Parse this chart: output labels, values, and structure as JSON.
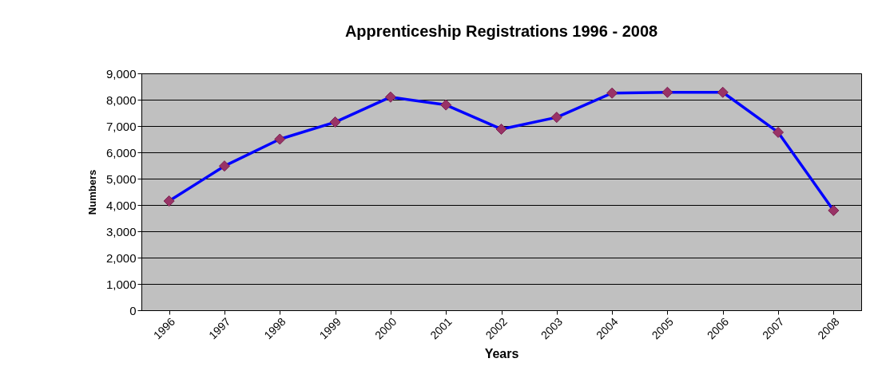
{
  "chart_data": {
    "type": "line",
    "title": "Apprenticeship Registrations 1996 - 2008",
    "xlabel": "Years",
    "ylabel": "Numbers",
    "categories": [
      "1996",
      "1997",
      "1998",
      "1999",
      "2000",
      "2001",
      "2002",
      "2003",
      "2004",
      "2005",
      "2006",
      "2007",
      "2008"
    ],
    "series": [
      {
        "color": "#0000ff",
        "values": [
          4150,
          5480,
          6500,
          7150,
          8100,
          7800,
          6880,
          7330,
          8250,
          8280,
          8280,
          6760,
          3790
        ]
      }
    ],
    "ylim": [
      0,
      9000
    ],
    "yticks": [
      0,
      {
        "value": 1000,
        "label": "1,000"
      },
      {
        "value": 2000,
        "label": "2,000"
      },
      {
        "value": 3000,
        "label": "3,000"
      },
      {
        "value": 4000,
        "label": "4,000"
      },
      {
        "value": 5000,
        "label": "5,000"
      },
      {
        "value": 6000,
        "label": "6,000"
      },
      {
        "value": 7000,
        "label": "7,000"
      },
      {
        "value": 8000,
        "label": "8,000"
      },
      {
        "value": 9000,
        "label": "9,000"
      }
    ],
    "grid": "y",
    "marker": "diamond",
    "line_style": "solid"
  }
}
